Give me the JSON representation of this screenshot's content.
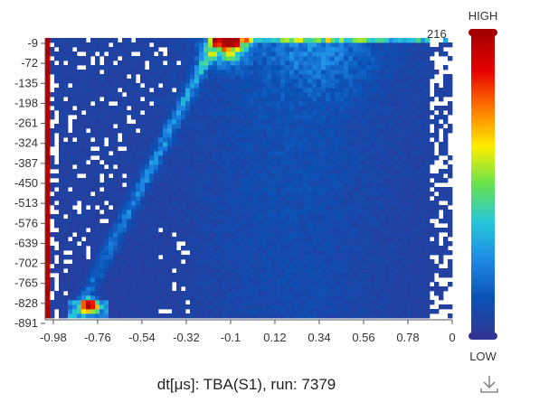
{
  "chart_data": {
    "type": "heatmap",
    "title": "dt[μs]: TBA(S1), run: 7379",
    "xlabel": "",
    "ylabel": "",
    "x_ticks": [
      "-0.98",
      "-0.76",
      "-0.54",
      "-0.32",
      "-0.1",
      "0.12",
      "0.34",
      "0.56",
      "0.78",
      "0"
    ],
    "y_ticks": [
      "-9",
      "-72",
      "-135",
      "-198",
      "-261",
      "-324",
      "-387",
      "-450",
      "-513",
      "-576",
      "-639",
      "-702",
      "-765",
      "-828",
      "-891"
    ],
    "xlim": [
      -1.02,
      1.0
    ],
    "ylim": [
      -891,
      -9
    ],
    "visual_map": {
      "min": 0,
      "max": 216,
      "max_label": "216",
      "high_text": "HIGH",
      "low_text": "LOW",
      "colors": [
        "#313695",
        "#0a52b5",
        "#1e88e5",
        "#26c6da",
        "#66e24e",
        "#ffee00",
        "#ff7700",
        "#e60000",
        "#a50000"
      ]
    },
    "features": {
      "bright_top_band_x": [
        -0.2,
        0.98
      ],
      "hot_peak_x": -0.1,
      "diagonal_ridge": {
        "x_start": -0.84,
        "y_start": -850,
        "x_end": -0.17,
        "y_end": -9
      },
      "hot_bottom_spot_x": -0.8,
      "hot_bottom_spot_y": -850
    }
  },
  "ui": {
    "download_icon": "download-icon"
  }
}
